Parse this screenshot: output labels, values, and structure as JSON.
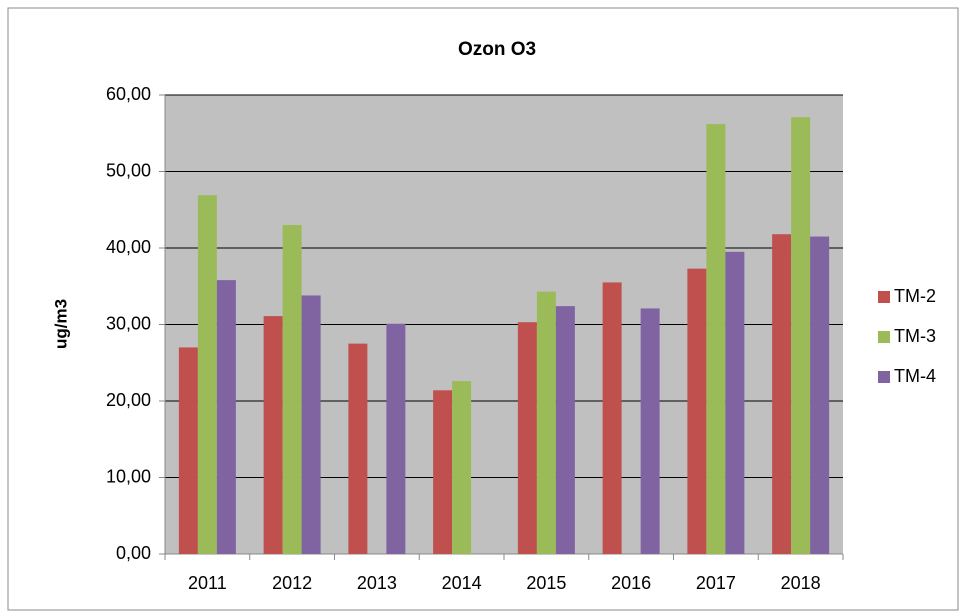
{
  "chart_data": {
    "type": "bar",
    "title": "Ozon O3",
    "ylabel": "ug/m3",
    "categories": [
      "2011",
      "2012",
      "2013",
      "2014",
      "2015",
      "2016",
      "2017",
      "2018"
    ],
    "series": [
      {
        "name": "TM-2",
        "color": "#c0504d",
        "values": [
          27,
          31.1,
          27.5,
          21.4,
          30.3,
          35.5,
          37.3,
          41.8
        ]
      },
      {
        "name": "TM-3",
        "color": "#9bbb59",
        "values": [
          46.9,
          43,
          null,
          22.6,
          34.3,
          null,
          56.2,
          57.1
        ]
      },
      {
        "name": "TM-4",
        "color": "#8064a2",
        "values": [
          35.8,
          33.8,
          30.1,
          null,
          32.4,
          32.1,
          39.5,
          41.5
        ]
      }
    ],
    "ylim": [
      0,
      60
    ],
    "yticks": [
      {
        "value": 0,
        "label": "0,00"
      },
      {
        "value": 10,
        "label": "10,00"
      },
      {
        "value": 20,
        "label": "20,00"
      },
      {
        "value": 30,
        "label": "30,00"
      },
      {
        "value": 40,
        "label": "40,00"
      },
      {
        "value": 50,
        "label": "50,00"
      },
      {
        "value": 60,
        "label": "60,00"
      }
    ],
    "grid": true,
    "legend": "right"
  }
}
